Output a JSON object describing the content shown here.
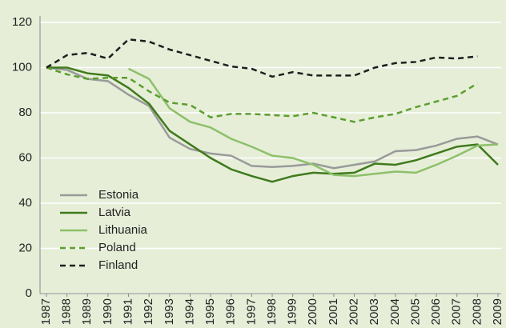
{
  "chart_data": {
    "type": "line",
    "categories": [
      "1987",
      "1988",
      "1989",
      "1990",
      "1991",
      "1992",
      "1993",
      "1994",
      "1995",
      "1996",
      "1997",
      "1998",
      "1999",
      "2000",
      "2001",
      "2002",
      "2003",
      "2004",
      "2005",
      "2006",
      "2007",
      "2008",
      "2009"
    ],
    "series": [
      {
        "name": "Estonia",
        "color": "#9a9a9a",
        "style": "solid",
        "values": [
          100,
          99,
          95,
          94,
          88,
          83,
          69,
          64,
          62,
          61,
          56.5,
          56,
          56.5,
          57.5,
          55.5,
          57,
          58.5,
          63,
          63.5,
          65.5,
          68.5,
          69.5,
          66
        ]
      },
      {
        "name": "Latvia",
        "color": "#3f7a1c",
        "style": "solid",
        "values": [
          100,
          100,
          97.5,
          96.5,
          91,
          84,
          72,
          66,
          60,
          55,
          52,
          49.5,
          52,
          53.5,
          53,
          53.5,
          57.5,
          57,
          59,
          62,
          65,
          66,
          57
        ]
      },
      {
        "name": "Lithuania",
        "color": "#8dc06a",
        "style": "solid",
        "values": [
          null,
          null,
          null,
          null,
          99.5,
          95,
          82,
          76,
          73.5,
          68.5,
          65,
          61,
          60,
          57,
          52.5,
          52,
          53,
          54,
          53.5,
          57,
          61,
          65.5,
          66
        ]
      },
      {
        "name": "Poland",
        "color": "#5c9e2e",
        "style": "dashed",
        "values": [
          100,
          97,
          95,
          95.5,
          95.5,
          89.5,
          84.5,
          83.5,
          78,
          79.5,
          79.5,
          79,
          78.5,
          80,
          78,
          76,
          78,
          79.5,
          82.5,
          85,
          87.5,
          93,
          null
        ]
      },
      {
        "name": "Finland",
        "color": "#1e1e1e",
        "style": "dashed",
        "values": [
          100,
          105.5,
          106.5,
          104,
          112.5,
          111.5,
          108,
          105.5,
          103,
          100.5,
          99.5,
          96,
          98,
          96.5,
          96.5,
          96.5,
          100,
          102,
          102.5,
          104.5,
          104,
          105,
          null
        ]
      }
    ],
    "ylim": [
      0,
      120
    ],
    "yticks": [
      0,
      20,
      40,
      60,
      80,
      100,
      120
    ],
    "grid": true,
    "legend": "lower left"
  }
}
